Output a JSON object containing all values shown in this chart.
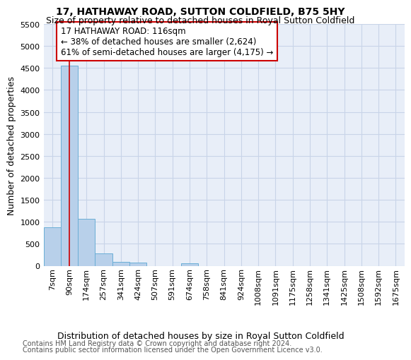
{
  "title": "17, HATHAWAY ROAD, SUTTON COLDFIELD, B75 5HY",
  "subtitle": "Size of property relative to detached houses in Royal Sutton Coldfield",
  "xlabel": "Distribution of detached houses by size in Royal Sutton Coldfield",
  "ylabel": "Number of detached properties",
  "footer_line1": "Contains HM Land Registry data © Crown copyright and database right 2024.",
  "footer_line2": "Contains public sector information licensed under the Open Government Licence v3.0.",
  "annotation_line0": "17 HATHAWAY ROAD: 116sqm",
  "annotation_line1": "← 38% of detached houses are smaller (2,624)",
  "annotation_line2": "61% of semi-detached houses are larger (4,175) →",
  "bar_labels": [
    "7sqm",
    "90sqm",
    "174sqm",
    "257sqm",
    "341sqm",
    "424sqm",
    "507sqm",
    "591sqm",
    "674sqm",
    "758sqm",
    "841sqm",
    "924sqm",
    "1008sqm",
    "1091sqm",
    "1175sqm",
    "1258sqm",
    "1341sqm",
    "1425sqm",
    "1508sqm",
    "1592sqm",
    "1675sqm"
  ],
  "bar_values": [
    880,
    4560,
    1060,
    285,
    85,
    80,
    0,
    0,
    55,
    0,
    0,
    0,
    0,
    0,
    0,
    0,
    0,
    0,
    0,
    0,
    0
  ],
  "bar_color": "#b8d0ea",
  "bar_edge_color": "#6aaed6",
  "vline_color": "#cc0000",
  "vline_x": 1,
  "ylim": [
    0,
    5500
  ],
  "yticks": [
    0,
    500,
    1000,
    1500,
    2000,
    2500,
    3000,
    3500,
    4000,
    4500,
    5000,
    5500
  ],
  "grid_color": "#c8d4e8",
  "bg_color": "#e8eef8",
  "annotation_box_color": "#cc0000",
  "title_fontsize": 10,
  "subtitle_fontsize": 9,
  "ylabel_fontsize": 9,
  "tick_fontsize": 8,
  "xlabel_fontsize": 9,
  "footer_fontsize": 7,
  "annotation_fontsize": 8.5
}
